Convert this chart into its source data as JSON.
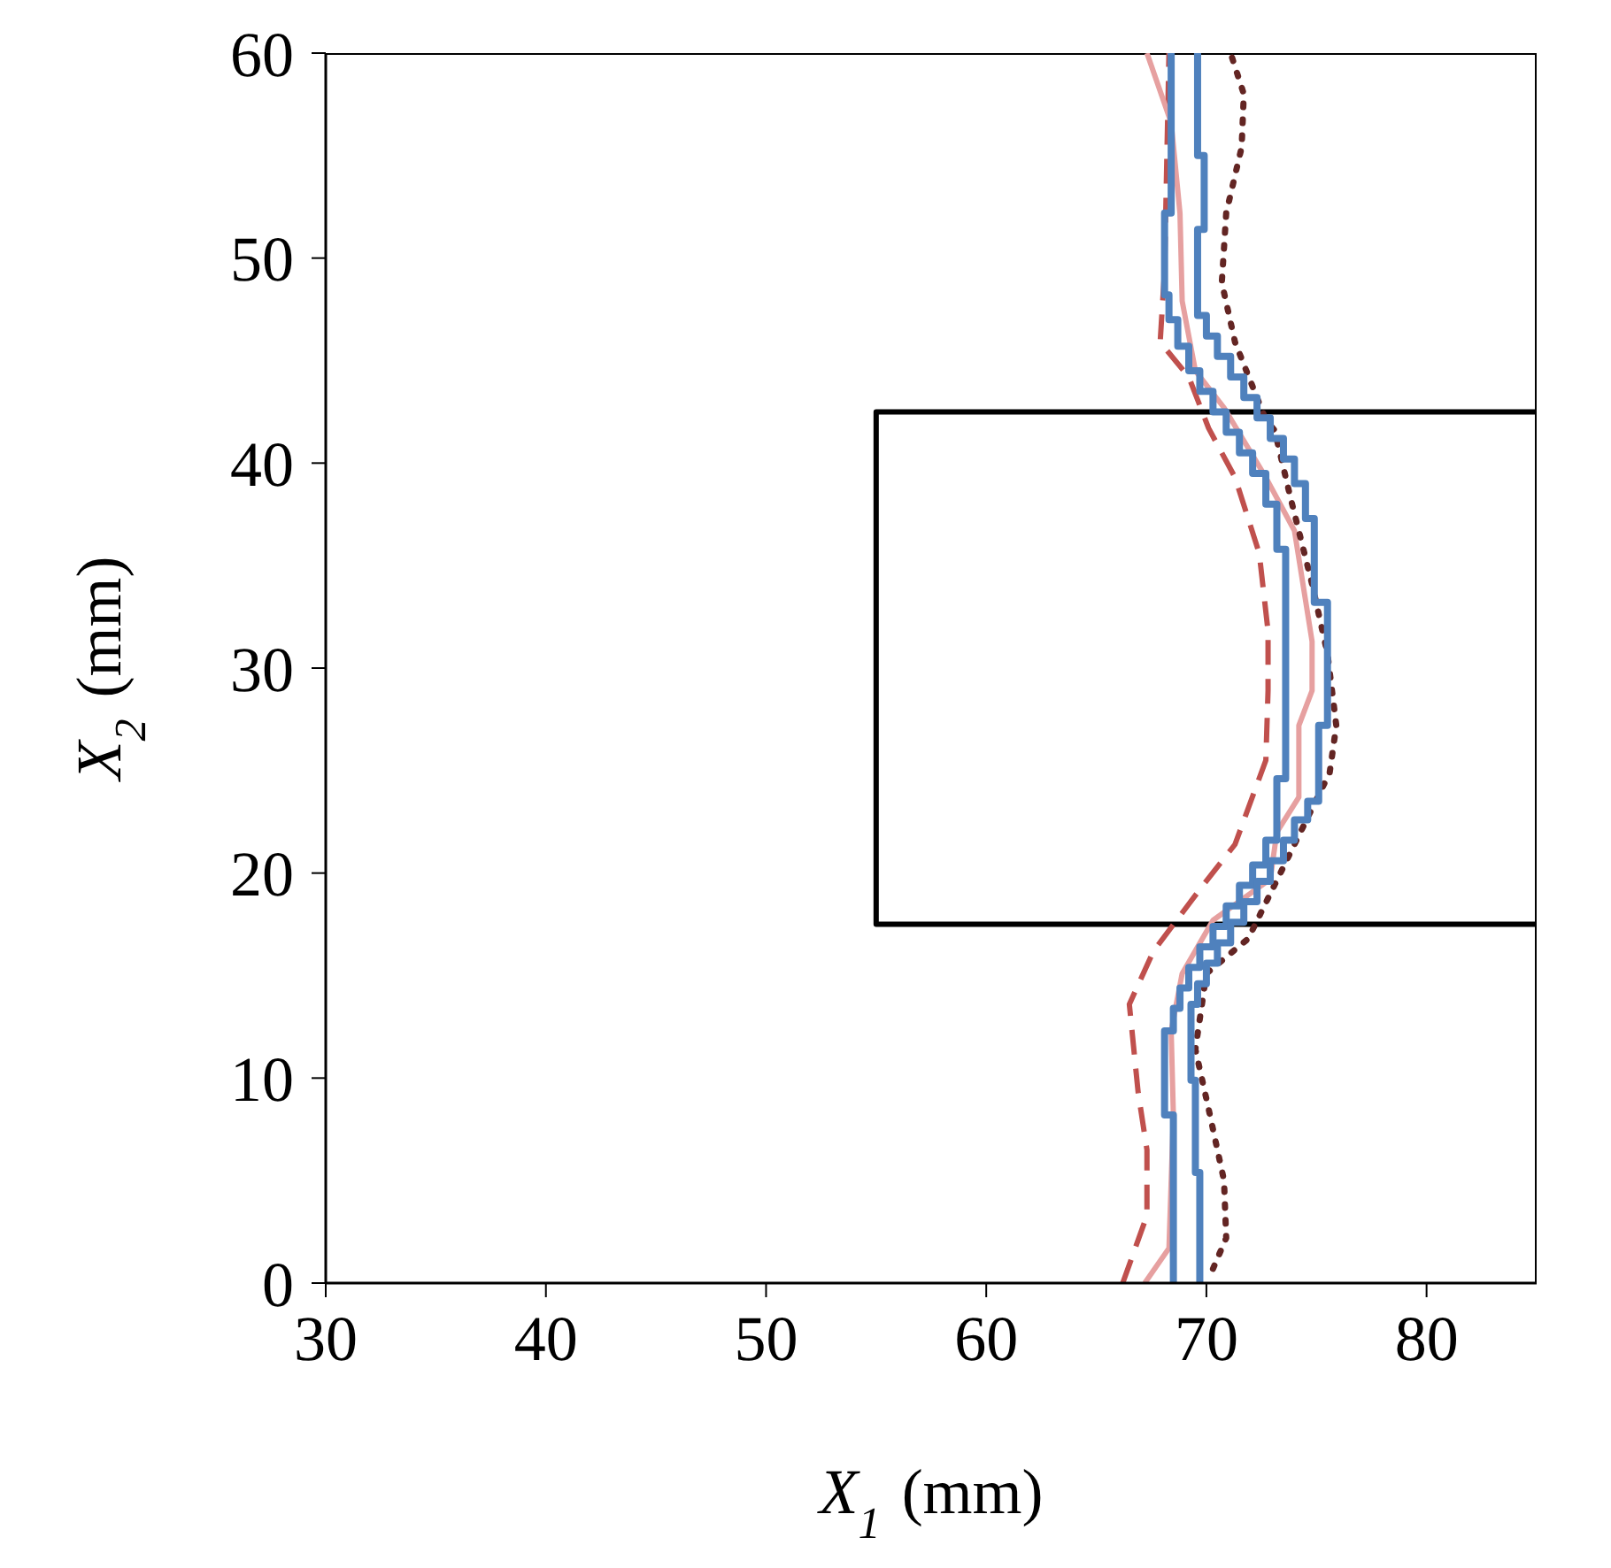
{
  "chart_data": {
    "type": "line",
    "xlabel": "X$_{1}$ (mm)",
    "ylabel": "X$_{2}$ (mm)",
    "xlim": [
      30,
      85
    ],
    "ylim": [
      0,
      60
    ],
    "xticks": [
      30,
      40,
      50,
      60,
      70,
      80
    ],
    "yticks": [
      0,
      10,
      20,
      30,
      40,
      50,
      60
    ],
    "marker": "none",
    "series": [
      {
        "type": "line",
        "color": "#000000",
        "line_style": "solid",
        "x": [
          85,
          55,
          55,
          85
        ],
        "values": [
          17.5,
          17.5,
          42.5,
          42.5
        ]
      },
      {
        "type": "line",
        "color": "#c0504d",
        "line_style": "dashed",
        "x": [
          66.2,
          67.3,
          67.3,
          66.9,
          66.5,
          67.6,
          69.7,
          71.3,
          72.7,
          72.8,
          72.8,
          72.4,
          71.3,
          70.1,
          69.2,
          67.9,
          68.1,
          68.3
        ],
        "values": [
          0,
          3.3,
          6.5,
          9.3,
          13.6,
          16.2,
          19.2,
          21.4,
          25.5,
          28.9,
          31.8,
          35.6,
          39.3,
          41.7,
          44.2,
          45.9,
          49.4,
          60
        ]
      },
      {
        "type": "line",
        "color": "#e6a0a0",
        "line_style": "solid",
        "x": [
          67.2,
          68.3,
          68.5,
          68.4,
          68.9,
          70.3,
          72.9,
          73.2,
          74.2,
          74.2,
          74.8,
          74.8,
          74.0,
          72.7,
          70.8,
          69.5,
          68.9,
          68.8,
          68.4,
          67.3
        ],
        "values": [
          0,
          1.7,
          8.2,
          12.3,
          15.1,
          17.7,
          19.7,
          22.0,
          23.7,
          27.2,
          28.9,
          31.3,
          36.7,
          39.3,
          42.7,
          44.5,
          47.9,
          52.2,
          56.6,
          60
        ]
      },
      {
        "type": "line",
        "color": "#632523",
        "line_style": "dotted",
        "x": [
          70.3,
          70.9,
          70.8,
          70.1,
          69.5,
          70.0,
          71.9,
          74.0,
          75.6,
          75.9,
          75.5,
          74.8,
          73.8,
          73.1,
          72.7,
          71.3,
          70.7,
          70.9,
          71.6,
          71.7,
          71.1
        ],
        "values": [
          0.7,
          2.2,
          5.0,
          8.5,
          11.4,
          15.1,
          16.8,
          21.4,
          24.9,
          27.2,
          30.7,
          34.1,
          38.4,
          41.6,
          42.1,
          45.9,
          48.8,
          52.2,
          55.4,
          58.0,
          60
        ]
      },
      {
        "type": "step",
        "color": "#4f81bd",
        "line_style": "solid",
        "x": [
          68.5,
          68.1,
          68.5,
          68.8,
          69.2,
          69.7,
          70.3,
          70.9,
          71.5,
          72.1,
          72.7,
          73.2,
          73.6,
          73.2,
          72.7,
          72.1,
          71.5,
          70.9,
          70.3,
          69.7,
          69.2,
          68.7,
          68.3,
          68.1,
          68.4,
          68.4
        ],
        "values": [
          0,
          8.2,
          12.3,
          13.4,
          14.4,
          15.4,
          16.4,
          17.4,
          18.4,
          19.4,
          20.4,
          21.6,
          24.6,
          35.8,
          38,
          39.5,
          40.5,
          41.5,
          42.5,
          43.5,
          44.5,
          45.7,
          47,
          48.2,
          52.2,
          60
        ]
      },
      {
        "type": "step",
        "color": "#4f81bd",
        "line_style": "solid",
        "x": [
          69.7,
          69.5,
          69.3,
          69.6,
          70.0,
          70.5,
          71.1,
          71.7,
          72.3,
          72.9,
          73.5,
          74.0,
          74.6,
          75.1,
          75.5,
          74.9,
          74.5,
          74.0,
          73.5,
          72.9,
          72.3,
          71.7,
          71.1,
          70.5,
          70.0,
          69.6,
          69.9,
          69.6,
          69.6
        ],
        "values": [
          0,
          5.4,
          9.9,
          13.6,
          14.6,
          15.6,
          16.6,
          17.6,
          18.6,
          19.6,
          20.6,
          21.6,
          22.6,
          23.5,
          27.2,
          33.2,
          37.3,
          39,
          40.2,
          41.2,
          42.2,
          43.2,
          44.2,
          45.2,
          46.2,
          47.2,
          51.4,
          55,
          60
        ]
      }
    ]
  }
}
